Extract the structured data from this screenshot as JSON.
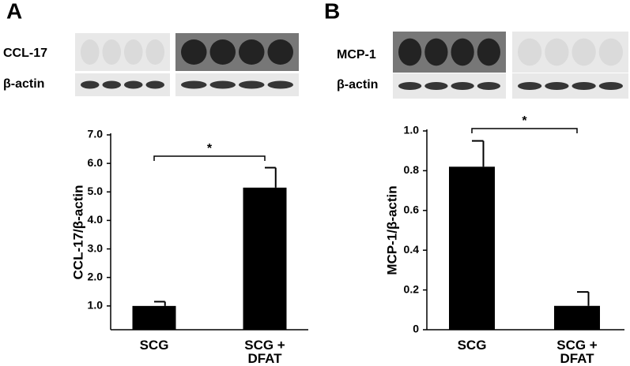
{
  "chart_data": [
    {
      "type": "bar",
      "panel": "A",
      "blot_labels": [
        "CCL-17",
        "β-actin"
      ],
      "ylabel": "CCL-17/β-actin",
      "categories": [
        "SCG",
        "SCG +\nDFAT"
      ],
      "values": [
        1.0,
        5.15
      ],
      "errors": [
        0.15,
        0.7
      ],
      "color": "#000000",
      "ylim": [
        0,
        7
      ],
      "yticks": [
        {
          "value": 1,
          "label": "1.0"
        },
        {
          "value": 2,
          "label": "2.0"
        },
        {
          "value": 3,
          "label": "3.0"
        },
        {
          "value": 4,
          "label": "4.0"
        },
        {
          "value": 5,
          "label": "5.0"
        },
        {
          "value": 6,
          "label": "6.0"
        },
        {
          "value": 7,
          "label": "7.0"
        }
      ],
      "annotation": "*"
    },
    {
      "type": "bar",
      "panel": "B",
      "blot_labels": [
        "MCP-1",
        "β-actin"
      ],
      "ylabel": "MCP-1/β-actin",
      "categories": [
        "SCG",
        "SCG +\nDFAT"
      ],
      "values": [
        0.82,
        0.12
      ],
      "errors": [
        0.13,
        0.07
      ],
      "color": "#000000",
      "ylim": [
        0,
        1
      ],
      "yticks": [
        0,
        0.2,
        0.4,
        0.6,
        0.8,
        {
          "value": 1,
          "label": "1.0"
        }
      ],
      "annotation": "*"
    }
  ]
}
